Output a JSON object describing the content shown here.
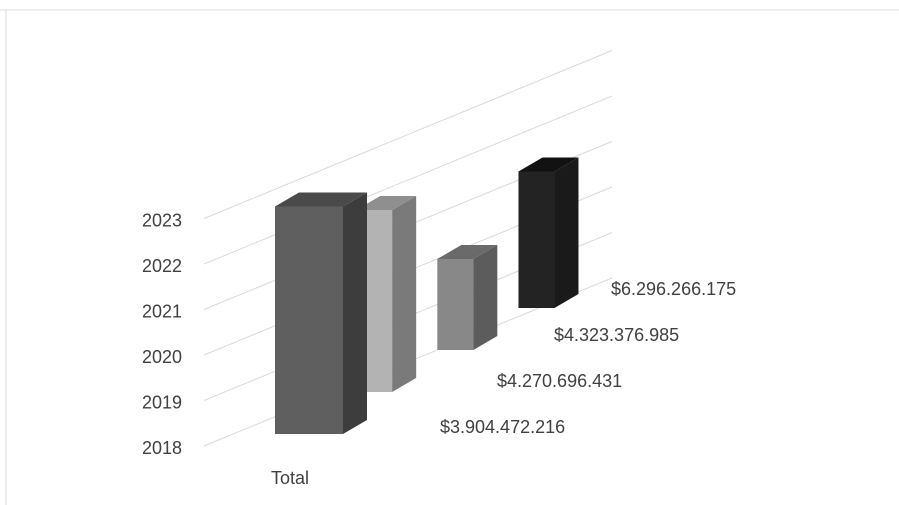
{
  "chart_data": {
    "type": "bar",
    "style": "3d-column",
    "categories": [
      "Total"
    ],
    "depth_labels": [
      "$3.904.472.216",
      "$4.270.696.431",
      "$4.323.376.985",
      "$6.296.266.175"
    ],
    "vertical_tick_labels": [
      "2018",
      "2019",
      "2020",
      "2021",
      "2022",
      "2023"
    ],
    "series": [
      {
        "label": "$3.904.472.216",
        "value": 2023,
        "front": "#5f5f5f",
        "top": "#4a4a4a",
        "side": "#3d3d3d"
      },
      {
        "label": "$4.270.696.431",
        "value": 2022,
        "front": "#b3b3b3",
        "top": "#8f8f8f",
        "side": "#7a7a7a"
      },
      {
        "label": "$4.323.376.985",
        "value": 2020,
        "front": "#888888",
        "top": "#6a6a6a",
        "side": "#5c5c5c"
      },
      {
        "label": "$6.296.266.175",
        "value": 2021,
        "front": "#232323",
        "top": "#121212",
        "side": "#1a1a1a"
      }
    ],
    "ylim": [
      2018,
      2023
    ],
    "grid": true,
    "title": "",
    "xlabel": "",
    "ylabel": ""
  }
}
